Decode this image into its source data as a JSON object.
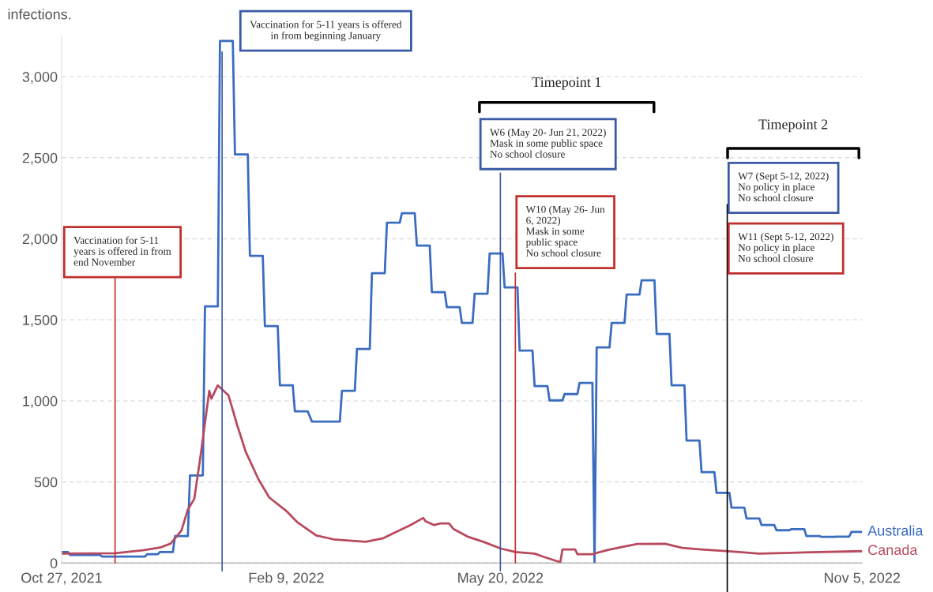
{
  "chart_data": {
    "type": "line",
    "subtitle": "infections.",
    "series": [
      {
        "name": "Australia",
        "color": "#3a6cc0",
        "x": [
          "2021-10-27",
          "2021-10-30",
          "2021-10-31",
          "2021-11-14",
          "2021-11-15",
          "2021-12-05",
          "2021-12-06",
          "2021-12-11",
          "2021-12-12",
          "2021-12-18",
          "2021-12-19",
          "2021-12-25",
          "2021-12-26",
          "2022-01-01",
          "2022-01-02",
          "2022-01-08",
          "2022-01-09",
          "2022-01-15",
          "2022-01-16",
          "2022-01-22",
          "2022-01-23",
          "2022-01-29",
          "2022-01-30",
          "2022-02-05",
          "2022-02-06",
          "2022-02-12",
          "2022-02-13",
          "2022-02-19",
          "2022-02-21",
          "2022-03-06",
          "2022-03-07",
          "2022-03-13",
          "2022-03-14",
          "2022-03-20",
          "2022-03-21",
          "2022-03-27",
          "2022-03-28",
          "2022-04-03",
          "2022-04-04",
          "2022-04-10",
          "2022-04-11",
          "2022-04-17",
          "2022-04-18",
          "2022-04-24",
          "2022-04-25",
          "2022-05-01",
          "2022-05-02",
          "2022-05-07",
          "2022-05-08",
          "2022-05-14",
          "2022-05-15",
          "2022-05-21",
          "2022-05-22",
          "2022-05-28",
          "2022-05-29",
          "2022-06-04",
          "2022-06-05",
          "2022-06-11",
          "2022-06-12",
          "2022-06-18",
          "2022-06-19",
          "2022-06-25",
          "2022-06-26",
          "2022-07-02",
          "2022-07-03",
          "2022-07-04",
          "2022-07-10",
          "2022-07-11",
          "2022-07-17",
          "2022-07-18",
          "2022-07-24",
          "2022-07-25",
          "2022-07-31",
          "2022-08-01",
          "2022-08-07",
          "2022-08-08",
          "2022-08-14",
          "2022-08-15",
          "2022-08-21",
          "2022-08-22",
          "2022-08-28",
          "2022-08-29",
          "2022-09-04",
          "2022-09-05",
          "2022-09-11",
          "2022-09-12",
          "2022-09-18",
          "2022-09-19",
          "2022-09-25",
          "2022-09-26",
          "2022-10-02",
          "2022-10-03",
          "2022-10-09",
          "2022-10-10",
          "2022-10-16",
          "2022-10-17",
          "2022-10-23",
          "2022-10-24",
          "2022-10-30",
          "2022-10-31",
          "2022-11-05"
        ],
        "values": [
          68,
          68,
          49,
          49,
          40,
          40,
          54,
          54,
          68,
          68,
          166,
          166,
          540,
          540,
          1583,
          1583,
          3220,
          3220,
          2520,
          2520,
          1895,
          1895,
          1461,
          1461,
          1096,
          1096,
          935,
          935,
          872,
          872,
          1062,
          1062,
          1320,
          1320,
          1788,
          1788,
          2099,
          2099,
          2158,
          2158,
          1958,
          1958,
          1671,
          1671,
          1578,
          1578,
          1481,
          1481,
          1661,
          1661,
          1909,
          1909,
          1700,
          1700,
          1310,
          1310,
          1091,
          1091,
          1003,
          1003,
          1042,
          1042,
          1111,
          1111,
          0,
          1330,
          1330,
          1481,
          1481,
          1656,
          1656,
          1744,
          1744,
          1413,
          1413,
          1096,
          1096,
          755,
          755,
          560,
          560,
          433,
          433,
          341,
          341,
          275,
          275,
          234,
          234,
          202,
          202,
          209,
          209,
          166,
          166,
          161,
          161,
          163,
          163,
          192,
          192
        ]
      },
      {
        "name": "Canada",
        "color": "#b84a5e",
        "x": [
          "2021-10-27",
          "2021-11-21",
          "2021-12-04",
          "2021-12-12",
          "2021-12-17",
          "2021-12-22",
          "2021-12-25",
          "2021-12-28",
          "2021-12-31",
          "2022-01-04",
          "2022-01-05",
          "2022-01-08",
          "2022-01-13",
          "2022-01-17",
          "2022-01-21",
          "2022-01-27",
          "2022-02-01",
          "2022-02-09",
          "2022-02-14",
          "2022-02-23",
          "2022-03-03",
          "2022-03-18",
          "2022-03-26",
          "2022-04-01",
          "2022-04-08",
          "2022-04-14",
          "2022-04-15",
          "2022-04-19",
          "2022-04-22",
          "2022-04-26",
          "2022-04-28",
          "2022-05-05",
          "2022-05-12",
          "2022-05-20",
          "2022-05-27",
          "2022-06-05",
          "2022-06-09",
          "2022-06-17",
          "2022-06-18",
          "2022-06-24",
          "2022-06-25",
          "2022-07-02",
          "2022-07-09",
          "2022-07-16",
          "2022-07-23",
          "2022-08-05",
          "2022-08-13",
          "2022-08-22",
          "2022-09-05",
          "2022-09-18",
          "2022-10-03",
          "2022-11-05"
        ],
        "values": [
          58,
          60,
          78,
          95,
          120,
          200,
          330,
          395,
          667,
          1062,
          1013,
          1096,
          1033,
          852,
          687,
          516,
          404,
          321,
          253,
          170,
          146,
          131,
          151,
          190,
          234,
          278,
          258,
          234,
          244,
          244,
          211,
          161,
          131,
          90,
          68,
          58,
          39,
          5,
          83,
          83,
          54,
          54,
          80,
          99,
          117,
          119,
          93,
          83,
          71,
          58,
          63,
          73
        ]
      }
    ],
    "xlim": [
      "2021-10-27",
      "2022-11-05"
    ],
    "xticks": [
      {
        "value": "2021-10-27",
        "label": "Oct 27, 2021"
      },
      {
        "value": "2022-02-09",
        "label": "Feb 9, 2022"
      },
      {
        "value": "2022-05-20",
        "label": "May 20, 2022"
      },
      {
        "value": "2022-11-05",
        "label": "Nov 5, 2022"
      }
    ],
    "ylim": [
      0,
      3250
    ],
    "yticks": [
      0,
      500,
      {
        "value": 1000,
        "label": "1,000"
      },
      {
        "value": 1500,
        "label": "1,500"
      },
      {
        "value": 2000,
        "label": "2,000"
      },
      {
        "value": 2500,
        "label": "2,500"
      },
      {
        "value": 3000,
        "label": "3,000"
      }
    ],
    "grid": "y",
    "legend": false,
    "ref_lines": [
      {
        "axis": "x",
        "value": "2021-11-21",
        "label": "Vaccination for 5-11\nyears is offered in from\nend November",
        "color": "#c0302e"
      },
      {
        "axis": "x",
        "value": "2022-01-10",
        "label": "Vaccination for 5-11 years is offered\nin from beginning January",
        "color": "#3b5aa6"
      },
      {
        "axis": "x",
        "value": "2022-05-20",
        "label": "W6 (May 20- Jun 21, 2022)\nMask in some public space\nNo school closure",
        "color": "#3b5aa6"
      },
      {
        "axis": "x",
        "value": "2022-05-27",
        "label": "W10 (May 26- Jun\n6, 2022)\nMask in some\npublic space\nNo school closure",
        "color": "#c0302e"
      },
      {
        "axis": "x",
        "value": "2022-09-03",
        "color": "#000000"
      }
    ],
    "annotations": [
      "Timepoint 1",
      "Timepoint 2",
      "W7 (Sept 5-12, 2022)\nNo policy in place\nNo school closure",
      "W11 (Sept 5-12, 2022)\nNo policy in place\nNo school closure"
    ]
  }
}
